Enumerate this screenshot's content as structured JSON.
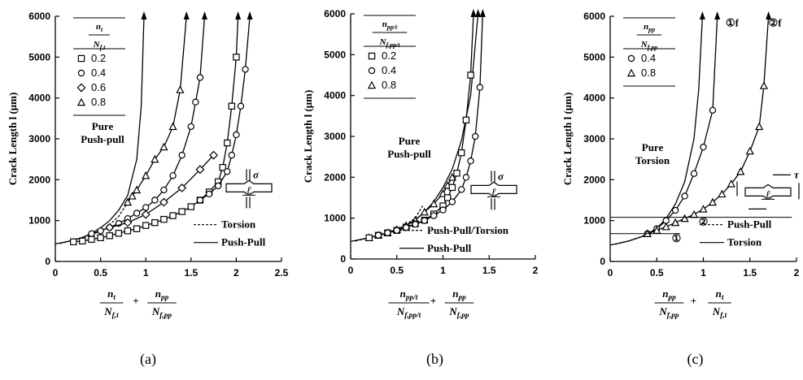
{
  "chart_data": [
    {
      "type": "line",
      "caption": "(a)",
      "ylabel": "Crack Length l (μm)",
      "xlabel_terms": [
        {
          "num": "n",
          "num_sub": "t",
          "den": "N",
          "den_sub": "f,t"
        },
        {
          "num": "n",
          "num_sub": "pp",
          "den": "N",
          "den_sub": "f,pp"
        }
      ],
      "xlim": [
        0,
        2.5
      ],
      "ylim": [
        0,
        6000
      ],
      "xticks": [
        0,
        0.5,
        1,
        1.5,
        2,
        2.5
      ],
      "xtick_labels": [
        "0",
        "0.5",
        "1",
        "1.5",
        "2",
        "2.5"
      ],
      "yticks": [
        0,
        1000,
        2000,
        3000,
        4000,
        5000,
        6000
      ],
      "ytick_labels": [
        "0",
        "1000",
        "2000",
        "3000",
        "4000",
        "5000",
        "6000"
      ],
      "legend": {
        "header": {
          "num": "n",
          "num_sub": "t",
          "den": "N",
          "den_sub": "f,t"
        },
        "entries": [
          {
            "marker": "square",
            "label": "0.2"
          },
          {
            "marker": "circle",
            "label": "0.4"
          },
          {
            "marker": "diamond",
            "label": "0.6"
          },
          {
            "marker": "triangle",
            "label": "0.8"
          }
        ],
        "note_lines": [
          "Pure",
          "Push-pull"
        ]
      },
      "line_legend": [
        {
          "style": "dashed",
          "label": "Torsion"
        },
        {
          "style": "solid",
          "label": "Push-Pull"
        }
      ],
      "annotations": {
        "stress": "σ",
        "length": "ℓ"
      },
      "series": [
        {
          "style": "solid",
          "marker": null,
          "arrow": true,
          "x": [
            0,
            0.1,
            0.2,
            0.3,
            0.4,
            0.5,
            0.6,
            0.7,
            0.8,
            0.9,
            0.95,
            0.98
          ],
          "y": [
            430,
            470,
            520,
            590,
            690,
            820,
            1000,
            1250,
            1620,
            2500,
            3800,
            6000
          ]
        },
        {
          "style": "dashed",
          "marker": null,
          "arrow": false,
          "x": [
            0.05,
            0.2,
            0.4,
            0.55,
            0.7,
            0.8
          ],
          "y": [
            440,
            520,
            650,
            800,
            1100,
            1450
          ]
        },
        {
          "style": "solid",
          "marker": "triangle",
          "arrow": true,
          "x": [
            0.8,
            0.85,
            0.9,
            1.0,
            1.1,
            1.2,
            1.3,
            1.38,
            1.45
          ],
          "y": [
            1450,
            1600,
            1750,
            2100,
            2500,
            2800,
            3300,
            4200,
            6000
          ]
        },
        {
          "style": "solid",
          "marker": "circle",
          "arrow": true,
          "x": [
            0.4,
            0.5,
            0.6,
            0.7,
            0.8,
            0.9,
            1.0,
            1.1,
            1.2,
            1.3,
            1.4,
            1.5,
            1.55,
            1.6,
            1.65
          ],
          "y": [
            680,
            750,
            830,
            930,
            1050,
            1180,
            1320,
            1500,
            1750,
            2100,
            2600,
            3300,
            3900,
            4500,
            6000
          ]
        },
        {
          "style": "solid",
          "marker": "diamond",
          "arrow": false,
          "x": [
            0.6,
            0.8,
            1.0,
            1.2,
            1.4,
            1.6,
            1.75
          ],
          "y": [
            830,
            950,
            1150,
            1450,
            1800,
            2250,
            2600
          ]
        },
        {
          "style": "solid",
          "marker": "square",
          "arrow": true,
          "x": [
            0.2,
            0.3,
            0.4,
            0.5,
            0.6,
            0.7,
            0.8,
            0.9,
            1.0,
            1.1,
            1.2,
            1.3,
            1.4,
            1.5,
            1.6,
            1.7,
            1.8,
            1.85,
            1.9,
            1.95,
            2.0,
            2.02
          ],
          "y": [
            480,
            500,
            540,
            580,
            630,
            690,
            750,
            800,
            880,
            950,
            1030,
            1120,
            1220,
            1340,
            1500,
            1700,
            1950,
            2300,
            2900,
            3800,
            5000,
            6000
          ]
        },
        {
          "style": "solid",
          "marker": "circle",
          "arrow": true,
          "x": [
            1.6,
            1.7,
            1.8,
            1.9,
            1.95,
            2.0,
            2.05,
            2.1,
            2.15
          ],
          "y": [
            1500,
            1650,
            1850,
            2200,
            2600,
            3100,
            3800,
            4700,
            6000
          ]
        }
      ]
    },
    {
      "type": "line",
      "caption": "(b)",
      "ylabel": "Crack Length l (μm)",
      "xlabel_terms": [
        {
          "num": "n",
          "num_sub": "pp/t",
          "den": "N",
          "den_sub": "f,pp/t"
        },
        {
          "num": "n",
          "num_sub": "pp",
          "den": "N",
          "den_sub": "f,pp"
        }
      ],
      "xlim": [
        0,
        2
      ],
      "ylim": [
        0,
        6000
      ],
      "xticks": [
        0,
        0.5,
        1,
        1.5,
        2
      ],
      "xtick_labels": [
        "0",
        "0.5",
        "1",
        "1.5",
        "2"
      ],
      "yticks": [
        0,
        1000,
        2000,
        3000,
        4000,
        5000,
        6000
      ],
      "ytick_labels": [
        "0",
        "1000",
        "2000",
        "3000",
        "4000",
        "5000",
        "6000"
      ],
      "legend": {
        "header": {
          "num": "n",
          "num_sub": "pp/t",
          "den": "N",
          "den_sub": "f,pp/t"
        },
        "entries": [
          {
            "marker": "square",
            "label": "0.2"
          },
          {
            "marker": "circle",
            "label": "0.4"
          },
          {
            "marker": "triangle",
            "label": "0.8"
          }
        ],
        "note_lines": []
      },
      "pure_label_lines": [
        "Pure",
        "Push-pull"
      ],
      "line_legend": [
        {
          "style": "dashed",
          "label": "Push-Pull/Torsion"
        },
        {
          "style": "solid",
          "label": "Push-Pull"
        }
      ],
      "annotations": {
        "stress": "σ",
        "length": "ℓ"
      },
      "series": [
        {
          "style": "solid",
          "marker": null,
          "arrow": true,
          "x": [
            0,
            0.2,
            0.4,
            0.6,
            0.7,
            0.8,
            0.9,
            1.0,
            1.1,
            1.2,
            1.3,
            1.38
          ],
          "y": [
            430,
            520,
            640,
            820,
            960,
            1150,
            1400,
            1750,
            2200,
            2900,
            4000,
            6000
          ]
        },
        {
          "style": "dashed",
          "marker": null,
          "arrow": false,
          "x": [
            0.05,
            0.2,
            0.4,
            0.55,
            0.7,
            0.78
          ],
          "y": [
            440,
            520,
            630,
            760,
            1000,
            1300
          ]
        },
        {
          "style": "solid",
          "marker": "triangle",
          "arrow": false,
          "x": [
            0.2,
            0.3,
            0.4,
            0.5,
            0.6,
            0.7,
            0.8,
            0.9,
            1.0,
            1.05,
            1.1
          ],
          "y": [
            520,
            580,
            640,
            720,
            820,
            950,
            1150,
            1350,
            1600,
            1800,
            2000
          ]
        },
        {
          "style": "solid",
          "marker": "square",
          "arrow": true,
          "x": [
            0.2,
            0.3,
            0.4,
            0.5,
            0.6,
            0.7,
            0.8,
            0.9,
            1.0,
            1.05,
            1.1,
            1.15,
            1.2,
            1.25,
            1.3,
            1.33
          ],
          "y": [
            520,
            580,
            640,
            700,
            780,
            860,
            950,
            1100,
            1300,
            1500,
            1750,
            2100,
            2600,
            3400,
            4500,
            6000
          ]
        },
        {
          "style": "solid",
          "marker": "circle",
          "arrow": true,
          "x": [
            0.3,
            0.4,
            0.5,
            0.6,
            0.7,
            0.8,
            0.9,
            1.0,
            1.1,
            1.2,
            1.25,
            1.3,
            1.35,
            1.4,
            1.43
          ],
          "y": [
            580,
            640,
            700,
            770,
            850,
            940,
            1060,
            1200,
            1400,
            1700,
            2000,
            2400,
            3000,
            4200,
            6000
          ]
        }
      ]
    },
    {
      "type": "line",
      "caption": "(c)",
      "ylabel": "Crack Length l (μm)",
      "xlabel_terms": [
        {
          "num": "n",
          "num_sub": "pp",
          "den": "N",
          "den_sub": "f,pp"
        },
        {
          "num": "n",
          "num_sub": "t",
          "den": "N",
          "den_sub": "f,t"
        }
      ],
      "xlim": [
        0,
        2
      ],
      "ylim": [
        0,
        6000
      ],
      "xticks": [
        0,
        0.5,
        1,
        1.5,
        2
      ],
      "xtick_labels": [
        "0",
        "0.5",
        "1",
        "1.5",
        "2"
      ],
      "yticks": [
        0,
        1000,
        2000,
        3000,
        4000,
        5000,
        6000
      ],
      "ytick_labels": [
        "0",
        "1000",
        "2000",
        "3000",
        "4000",
        "5000",
        "6000"
      ],
      "legend": {
        "header": {
          "num": "n",
          "num_sub": "pp",
          "den": "N",
          "den_sub": "f,pp"
        },
        "entries": [
          {
            "marker": "circle",
            "label": "0.4"
          },
          {
            "marker": "triangle",
            "label": "0.8"
          }
        ],
        "note_lines": []
      },
      "pure_label_lines": [
        "Pure",
        "Torsion"
      ],
      "line_legend": [
        {
          "style": "dashed",
          "label": "Push-Pull"
        },
        {
          "style": "solid",
          "label": "Torsion"
        }
      ],
      "curve_labels": [
        "①f",
        "②f"
      ],
      "point_labels": [
        "①",
        "②"
      ],
      "annotations": {
        "stress": "τ",
        "length": "ℓ"
      },
      "series": [
        {
          "style": "solid",
          "marker": null,
          "arrow": true,
          "x": [
            0,
            0.2,
            0.4,
            0.5,
            0.6,
            0.7,
            0.8,
            0.9,
            0.95,
            0.99
          ],
          "y": [
            400,
            500,
            650,
            800,
            1050,
            1400,
            1950,
            3000,
            4200,
            6000
          ]
        },
        {
          "style": "dashed",
          "marker": null,
          "arrow": false,
          "x": [
            0.05,
            0.2,
            0.35,
            0.45,
            0.55,
            0.62
          ],
          "y": [
            420,
            500,
            620,
            740,
            920,
            1100
          ]
        },
        {
          "style": "solid",
          "marker": "circle",
          "arrow": true,
          "x": [
            0.4,
            0.5,
            0.6,
            0.7,
            0.8,
            0.9,
            1.0,
            1.1,
            1.15
          ],
          "y": [
            680,
            800,
            1000,
            1250,
            1600,
            2150,
            2800,
            3700,
            6000
          ]
        },
        {
          "style": "solid",
          "marker": "triangle",
          "arrow": true,
          "x": [
            0.4,
            0.5,
            0.6,
            0.7,
            0.8,
            0.9,
            1.0,
            1.1,
            1.2,
            1.3,
            1.4,
            1.5,
            1.6,
            1.65,
            1.7
          ],
          "y": [
            680,
            760,
            850,
            950,
            1050,
            1150,
            1280,
            1450,
            1650,
            1900,
            2200,
            2700,
            3300,
            4300,
            6000
          ]
        }
      ]
    }
  ]
}
